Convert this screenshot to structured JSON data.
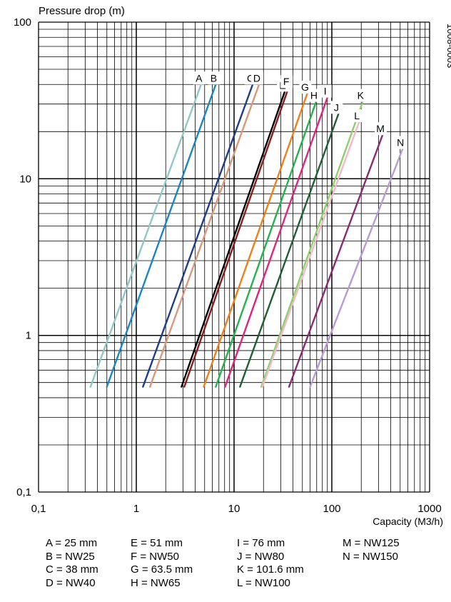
{
  "chart_data": {
    "type": "line",
    "ylabel": "Pressure drop (m)",
    "xlabel": "Capacity (M3/h)",
    "code": "1008-0003",
    "x_scale": "log",
    "y_scale": "log",
    "xlim": [
      0.1,
      1000
    ],
    "ylim": [
      0.1,
      100
    ],
    "x_ticks": [
      "0,1",
      "1",
      "10",
      "100",
      "1000"
    ],
    "y_ticks": [
      "0,1",
      "1",
      "10",
      "100"
    ],
    "grid": true,
    "series": [
      {
        "name": "A",
        "color": "#8fc9c4",
        "points": [
          [
            0.34,
            0.47
          ],
          [
            4.6,
            40
          ]
        ]
      },
      {
        "name": "B",
        "color": "#1a85c6",
        "points": [
          [
            0.5,
            0.47
          ],
          [
            6.5,
            40
          ]
        ]
      },
      {
        "name": "C",
        "color": "#1e3d8a",
        "points": [
          [
            1.17,
            0.47
          ],
          [
            15.5,
            40
          ]
        ]
      },
      {
        "name": "D",
        "color": "#d9987a",
        "points": [
          [
            1.38,
            0.47
          ],
          [
            18,
            40
          ]
        ]
      },
      {
        "name": "E",
        "color": "#000000",
        "points": [
          [
            2.9,
            0.47
          ],
          [
            33,
            36
          ]
        ]
      },
      {
        "name": "F",
        "color": "#8b1a1a",
        "points": [
          [
            3.1,
            0.47
          ],
          [
            36,
            38
          ]
        ]
      },
      {
        "name": "G",
        "color": "#f07f1a",
        "points": [
          [
            4.9,
            0.47
          ],
          [
            56,
            35
          ]
        ]
      },
      {
        "name": "H",
        "color": "#23b24b",
        "points": [
          [
            6.5,
            0.47
          ],
          [
            69,
            31
          ]
        ]
      },
      {
        "name": "I",
        "color": "#e0237c",
        "points": [
          [
            8.1,
            0.47
          ],
          [
            90,
            33
          ]
        ]
      },
      {
        "name": "J",
        "color": "#1f5f34",
        "points": [
          [
            11.5,
            0.47
          ],
          [
            117,
            26
          ]
        ]
      },
      {
        "name": "K",
        "color": "#8ecf6a",
        "points": [
          [
            19,
            0.47
          ],
          [
            207,
            31
          ]
        ]
      },
      {
        "name": "L",
        "color": "#f4b8c8",
        "points": [
          [
            19.5,
            0.47
          ],
          [
            190,
            23
          ]
        ]
      },
      {
        "name": "M",
        "color": "#8a2a72",
        "points": [
          [
            36.5,
            0.47
          ],
          [
            330,
            19
          ]
        ]
      },
      {
        "name": "N",
        "color": "#b99ad6",
        "points": [
          [
            60,
            0.47
          ],
          [
            530,
            15.5
          ]
        ]
      }
    ]
  },
  "legend": {
    "col1": [
      "A = 25 mm",
      "B = NW25",
      "C = 38 mm",
      "D = NW40"
    ],
    "col2": [
      "E = 51 mm",
      "F = NW50",
      "G = 63.5 mm",
      "H = NW65"
    ],
    "col3": [
      "I = 76 mm",
      "J = NW80",
      "K = 101.6 mm",
      "L = NW100"
    ],
    "col4": [
      "M = NW125",
      "N = NW150"
    ]
  }
}
